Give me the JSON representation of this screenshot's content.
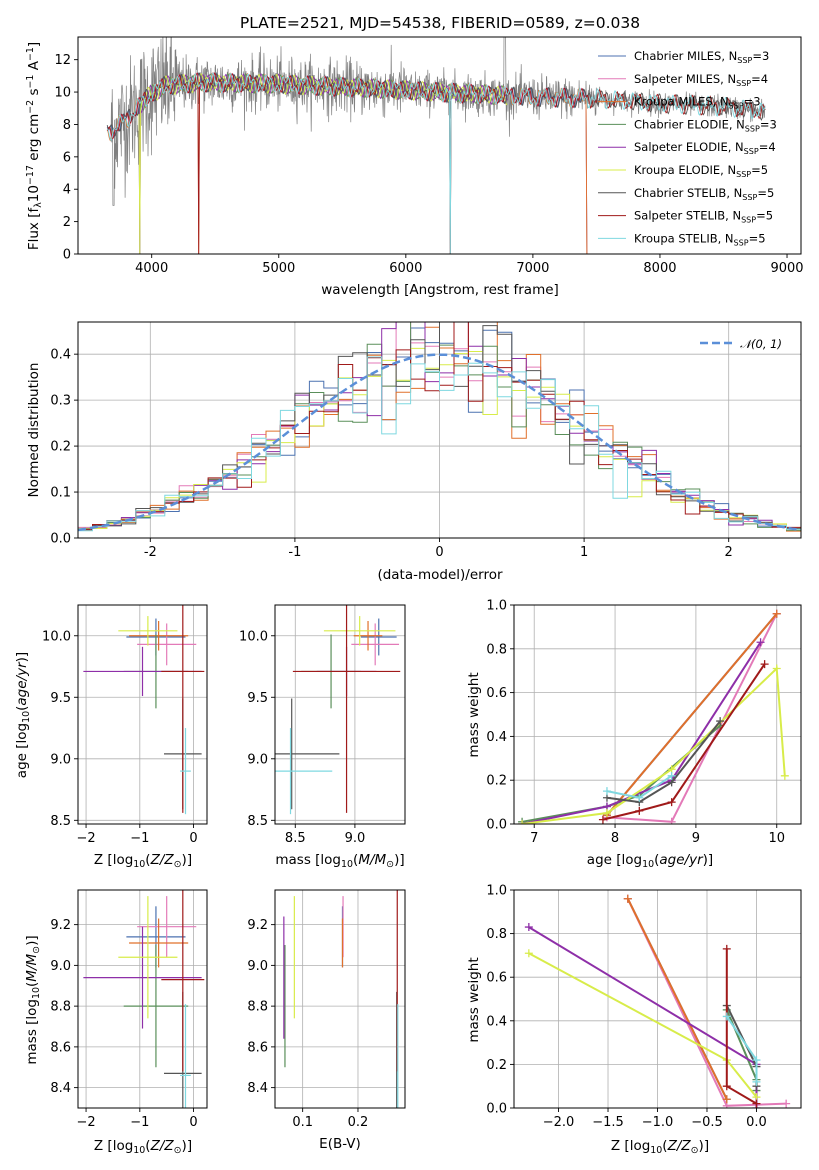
{
  "colors": {
    "chabrier_miles": "#4c72b0",
    "salpeter_miles": "#e37ab8",
    "kroupa_miles": "#e0702b",
    "chabrier_elodie": "#5a8f5a",
    "salpeter_elodie": "#8e2fa8",
    "kroupa_elodie": "#d8ec4a",
    "chabrier_stelib": "#555555",
    "salpeter_stelib": "#a01a1a",
    "kroupa_stelib": "#7fd8e0",
    "data": "#808080",
    "gauss": "#5b8fd8"
  },
  "chart_data": [
    {
      "id": "spectrum",
      "type": "line",
      "title": "PLATE=2521, MJD=54538, FIBERID=0589, z=0.038",
      "xlabel": "wavelength [Angstrom, rest frame]",
      "ylabel": "Flux [fλ10⁻¹⁷ erg cm⁻² s⁻¹ A⁻¹]",
      "xlim": [
        3420,
        9110
      ],
      "ylim": [
        0,
        13.4
      ],
      "xticks": [
        4000,
        5000,
        6000,
        7000,
        8000,
        9000
      ],
      "yticks": [
        0,
        2,
        4,
        6,
        8,
        10,
        12
      ],
      "legend_position": "top-right",
      "legend": [
        "Chabrier MILES, N_SSP=3",
        "Salpeter MILES, N_SSP=4",
        "Kroupa MILES, N_SSP=3",
        "Chabrier ELODIE, N_SSP=3",
        "Salpeter ELODIE, N_SSP=4",
        "Kroupa ELODIE, N_SSP=5",
        "Chabrier STELIB, N_SSP=5",
        "Salpeter STELIB, N_SSP=5",
        "Kroupa STELIB, N_SSP=5"
      ],
      "continuum": {
        "x": [
          3680,
          3800,
          3950,
          4100,
          4400,
          5000,
          5800,
          6500,
          7000,
          7500,
          8000,
          8500,
          8830
        ],
        "y": [
          7.6,
          8.3,
          9.6,
          10.4,
          10.6,
          10.5,
          10.2,
          9.9,
          9.7,
          9.6,
          9.3,
          9.1,
          8.8
        ]
      },
      "model_ranges": {
        "miles": [
          3650,
          7420
        ],
        "elodie": [
          3900,
          6800
        ],
        "stelib": [
          3650,
          8830
        ]
      }
    },
    {
      "id": "residuals",
      "type": "histogram",
      "xlabel": "(data-model)/error",
      "ylabel": "Normed distribution",
      "xlim": [
        -2.5,
        2.5
      ],
      "ylim": [
        0,
        0.47
      ],
      "xticks": [
        -2,
        -1,
        0,
        1,
        2
      ],
      "yticks": [
        0.0,
        0.1,
        0.2,
        0.3,
        0.4
      ],
      "legend_position": "top-right",
      "legend": [
        "𝒩(0, 1)"
      ],
      "bin_edges_from": -2.5,
      "bin_width": 0.1,
      "n_bins": 50
    },
    {
      "id": "age_vs_Z",
      "type": "errorbar",
      "xlabel": "Z [log₁₀(Z/Z☉)]",
      "ylabel": "age  [log₁₀(age/yr)]",
      "xlim": [
        -2.15,
        0.25
      ],
      "ylim": [
        8.47,
        10.25
      ],
      "xticks": [
        -2,
        -1,
        0
      ],
      "yticks": [
        8.5,
        9.0,
        9.5,
        10.0
      ],
      "points": [
        {
          "m": "chabrier_miles",
          "x": -0.7,
          "xerr": 0.55,
          "y": 9.99,
          "yerr": 0.15
        },
        {
          "m": "salpeter_miles",
          "x": -0.5,
          "xerr": 0.55,
          "y": 9.93,
          "yerr": 0.17
        },
        {
          "m": "kroupa_miles",
          "x": -0.65,
          "xerr": 0.55,
          "y": 10.0,
          "yerr": 0.12
        },
        {
          "m": "chabrier_elodie",
          "x": -0.7,
          "xerr": 0.6,
          "y": 9.71,
          "yerr": 0.3
        },
        {
          "m": "salpeter_elodie",
          "x": -0.95,
          "xerr": 1.1,
          "y": 9.71,
          "yerr": 0.2
        },
        {
          "m": "kroupa_elodie",
          "x": -0.85,
          "xerr": 0.55,
          "y": 10.04,
          "yerr": 0.12
        },
        {
          "m": "chabrier_stelib",
          "x": -0.2,
          "xerr": 0.35,
          "y": 9.04,
          "yerr": 0.45
        },
        {
          "m": "salpeter_stelib",
          "x": -0.2,
          "xerr": 0.4,
          "y": 9.71,
          "yerr": 1.15
        },
        {
          "m": "kroupa_stelib",
          "x": -0.15,
          "xerr": 0.1,
          "y": 8.9,
          "yerr": 0.35
        }
      ]
    },
    {
      "id": "age_vs_mass",
      "type": "errorbar",
      "xlabel": "mass [log₁₀(M/M☉)]",
      "xlim": [
        8.33,
        9.42
      ],
      "ylim": [
        8.47,
        10.25
      ],
      "xticks": [
        8.5,
        9.0
      ],
      "yticks": [
        8.5,
        9.0,
        9.5,
        10.0
      ],
      "points": [
        {
          "m": "chabrier_miles",
          "x": 9.2,
          "xerr": 0.15,
          "y": 9.99,
          "yerr": 0.15
        },
        {
          "m": "salpeter_miles",
          "x": 9.17,
          "xerr": 0.2,
          "y": 9.93,
          "yerr": 0.17
        },
        {
          "m": "kroupa_miles",
          "x": 9.11,
          "xerr": 0.12,
          "y": 10.0,
          "yerr": 0.12
        },
        {
          "m": "chabrier_elodie",
          "x": 8.8,
          "xerr": 0.25,
          "y": 9.71,
          "yerr": 0.3
        },
        {
          "m": "salpeter_elodie",
          "x": 8.93,
          "xerr": 0.25,
          "y": 9.71,
          "yerr": 0.2
        },
        {
          "m": "kroupa_elodie",
          "x": 9.04,
          "xerr": 0.3,
          "y": 10.04,
          "yerr": 0.12
        },
        {
          "m": "chabrier_stelib",
          "x": 8.47,
          "xerr": 0.4,
          "y": 9.04,
          "yerr": 0.45
        },
        {
          "m": "salpeter_stelib",
          "x": 8.93,
          "xerr": 0.45,
          "y": 9.71,
          "yerr": 1.15
        },
        {
          "m": "kroupa_stelib",
          "x": 8.46,
          "xerr": 0.35,
          "y": 8.9,
          "yerr": 0.35
        }
      ]
    },
    {
      "id": "weight_vs_age",
      "type": "line",
      "xlabel": "age  [log₁₀(age/yr)]",
      "ylabel": "mass weight",
      "xlim": [
        6.75,
        10.3
      ],
      "ylim": [
        0,
        1.0
      ],
      "xticks": [
        7,
        8,
        9,
        10
      ],
      "yticks": [
        0.0,
        0.2,
        0.4,
        0.6,
        0.8,
        1.0
      ],
      "series": [
        {
          "m": "chabrier_miles",
          "x": [
            7.9,
            10.0
          ],
          "y": [
            0.04,
            0.96
          ]
        },
        {
          "m": "salpeter_miles",
          "x": [
            7.9,
            8.7,
            10.0
          ],
          "y": [
            0.03,
            0.01,
            0.96
          ]
        },
        {
          "m": "kroupa_miles",
          "x": [
            7.9,
            10.0
          ],
          "y": [
            0.04,
            0.96
          ]
        },
        {
          "m": "chabrier_elodie",
          "x": [
            6.85,
            7.9,
            8.3,
            9.3
          ],
          "y": [
            0.01,
            0.08,
            0.13,
            0.45
          ]
        },
        {
          "m": "salpeter_elodie",
          "x": [
            6.85,
            7.9,
            8.7,
            9.8
          ],
          "y": [
            0.0,
            0.08,
            0.2,
            0.83
          ]
        },
        {
          "m": "kroupa_elodie",
          "x": [
            6.85,
            7.9,
            8.7,
            10.0,
            10.1
          ],
          "y": [
            0.0,
            0.05,
            0.25,
            0.71,
            0.22
          ]
        },
        {
          "m": "chabrier_stelib",
          "x": [
            7.9,
            8.3,
            8.7,
            9.3
          ],
          "y": [
            0.12,
            0.1,
            0.19,
            0.47
          ]
        },
        {
          "m": "salpeter_stelib",
          "x": [
            7.85,
            8.3,
            8.7,
            9.85
          ],
          "y": [
            0.02,
            0.06,
            0.1,
            0.73
          ]
        },
        {
          "m": "kroupa_stelib",
          "x": [
            7.9,
            8.3,
            8.7
          ],
          "y": [
            0.15,
            0.12,
            0.22
          ]
        }
      ]
    },
    {
      "id": "mass_vs_Z",
      "type": "errorbar",
      "xlabel": "Z [log₁₀(Z/Z☉)]",
      "ylabel": "mass [log₁₀(M/M☉)]",
      "xlim": [
        -2.15,
        0.25
      ],
      "ylim": [
        8.3,
        9.37
      ],
      "xticks": [
        -2,
        -1,
        0
      ],
      "yticks": [
        8.4,
        8.6,
        8.8,
        9.0,
        9.2
      ],
      "points": [
        {
          "m": "chabrier_miles",
          "x": -0.7,
          "xerr": 0.55,
          "y": 9.14,
          "yerr": 0.15
        },
        {
          "m": "salpeter_miles",
          "x": -0.5,
          "xerr": 0.55,
          "y": 9.19,
          "yerr": 0.15
        },
        {
          "m": "kroupa_miles",
          "x": -0.65,
          "xerr": 0.55,
          "y": 9.11,
          "yerr": 0.12
        },
        {
          "m": "chabrier_elodie",
          "x": -0.7,
          "xerr": 0.6,
          "y": 8.8,
          "yerr": 0.3
        },
        {
          "m": "salpeter_elodie",
          "x": -0.95,
          "xerr": 1.1,
          "y": 8.94,
          "yerr": 0.25
        },
        {
          "m": "kroupa_elodie",
          "x": -0.85,
          "xerr": 0.55,
          "y": 9.04,
          "yerr": 0.3
        },
        {
          "m": "chabrier_stelib",
          "x": -0.2,
          "xerr": 0.35,
          "y": 8.47,
          "yerr": 0.4
        },
        {
          "m": "salpeter_stelib",
          "x": -0.2,
          "xerr": 0.4,
          "y": 8.93,
          "yerr": 0.45
        },
        {
          "m": "kroupa_stelib",
          "x": -0.15,
          "xerr": 0.1,
          "y": 8.46,
          "yerr": 0.35
        }
      ]
    },
    {
      "id": "mass_vs_ebv",
      "type": "errorbar",
      "xlabel": "E(B-V)",
      "xlim": [
        0.05,
        0.285
      ],
      "ylim": [
        8.3,
        9.37
      ],
      "xticks": [
        0.1,
        0.2
      ],
      "yticks": [
        8.4,
        8.6,
        8.8,
        9.0,
        9.2
      ],
      "points": [
        {
          "m": "chabrier_miles",
          "x": 0.172,
          "xerr": 0,
          "y": 9.14,
          "yerr": 0.15
        },
        {
          "m": "salpeter_miles",
          "x": 0.173,
          "xerr": 0,
          "y": 9.19,
          "yerr": 0.15
        },
        {
          "m": "kroupa_miles",
          "x": 0.172,
          "xerr": 0,
          "y": 9.11,
          "yerr": 0.12
        },
        {
          "m": "chabrier_elodie",
          "x": 0.068,
          "xerr": 0,
          "y": 8.8,
          "yerr": 0.3
        },
        {
          "m": "salpeter_elodie",
          "x": 0.066,
          "xerr": 0,
          "y": 8.94,
          "yerr": 0.3
        },
        {
          "m": "kroupa_elodie",
          "x": 0.085,
          "xerr": 0,
          "y": 9.04,
          "yerr": 0.3
        },
        {
          "m": "chabrier_stelib",
          "x": 0.27,
          "xerr": 0,
          "y": 8.47,
          "yerr": 0.4
        },
        {
          "m": "salpeter_stelib",
          "x": 0.271,
          "xerr": 0,
          "y": 8.93,
          "yerr": 0.45
        },
        {
          "m": "kroupa_stelib",
          "x": 0.272,
          "xerr": 0,
          "y": 8.46,
          "yerr": 0.35
        }
      ]
    },
    {
      "id": "weight_vs_Z",
      "type": "line",
      "xlabel": "Z [log₁₀(Z/Z☉)]",
      "ylabel": "mass weight",
      "xlim": [
        -2.45,
        0.45
      ],
      "ylim": [
        0,
        1.0
      ],
      "xticks": [
        -2.0,
        -1.5,
        -1.0,
        -0.5,
        0.0
      ],
      "yticks": [
        0.0,
        0.2,
        0.4,
        0.6,
        0.8,
        1.0
      ],
      "series": [
        {
          "m": "chabrier_miles",
          "x": [
            -1.3,
            -0.3
          ],
          "y": [
            0.96,
            0.04
          ]
        },
        {
          "m": "salpeter_miles",
          "x": [
            -1.3,
            -0.3,
            0.3
          ],
          "y": [
            0.96,
            0.01,
            0.02
          ]
        },
        {
          "m": "kroupa_miles",
          "x": [
            -1.3,
            -0.3
          ],
          "y": [
            0.96,
            0.04
          ]
        },
        {
          "m": "chabrier_elodie",
          "x": [
            -0.3,
            0.0,
            0.0
          ],
          "y": [
            0.45,
            0.13,
            0.08
          ]
        },
        {
          "m": "salpeter_elodie",
          "x": [
            -2.3,
            0.0,
            0.0
          ],
          "y": [
            0.83,
            0.2,
            0.0
          ]
        },
        {
          "m": "kroupa_elodie",
          "x": [
            -2.3,
            -0.3,
            0.0
          ],
          "y": [
            0.71,
            0.22,
            0.05
          ]
        },
        {
          "m": "chabrier_stelib",
          "x": [
            -0.3,
            0.0,
            0.0
          ],
          "y": [
            0.47,
            0.19,
            0.1
          ]
        },
        {
          "m": "salpeter_stelib",
          "x": [
            -0.3,
            -0.3,
            0.0
          ],
          "y": [
            0.73,
            0.1,
            0.02
          ]
        },
        {
          "m": "kroupa_stelib",
          "x": [
            -0.3,
            0.0,
            0.0
          ],
          "y": [
            0.42,
            0.22,
            0.12
          ]
        }
      ]
    }
  ]
}
